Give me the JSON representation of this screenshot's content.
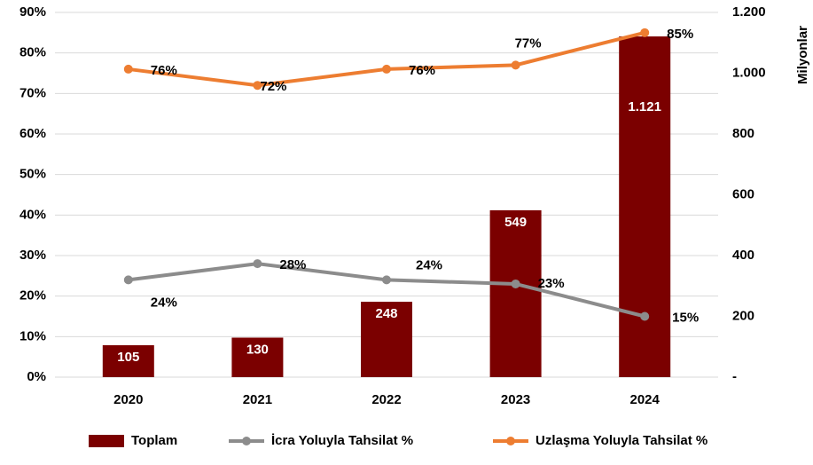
{
  "chart_data": {
    "type": "bar",
    "categories": [
      "2020",
      "2021",
      "2022",
      "2023",
      "2024"
    ],
    "series": [
      {
        "name": "Toplam",
        "type": "bar",
        "axis": "y2",
        "color": "#7b0000",
        "values": [
          105,
          130,
          248,
          549,
          1121
        ],
        "value_labels": [
          "105",
          "130",
          "248",
          "549",
          "1.121"
        ]
      },
      {
        "name": "İcra Yoluyla Tahsilat %",
        "type": "line",
        "color": "#8c8c8c",
        "values": [
          24,
          28,
          24,
          23,
          15
        ],
        "value_labels": [
          "24%",
          "28%",
          "24%",
          "23%",
          "15%"
        ]
      },
      {
        "name": "Uzlaşma Yoluyla Tahsilat %",
        "type": "line",
        "color": "#ed7d31",
        "values": [
          76,
          72,
          76,
          77,
          85
        ],
        "value_labels": [
          "76%",
          "72%",
          "76%",
          "77%",
          "85%"
        ]
      }
    ],
    "ylim": [
      0,
      90
    ],
    "yticks": [
      {
        "value": 0,
        "label": "0%"
      },
      {
        "value": 10,
        "label": "10%"
      },
      {
        "value": 20,
        "label": "20%"
      },
      {
        "value": 30,
        "label": "30%"
      },
      {
        "value": 40,
        "label": "40%"
      },
      {
        "value": 50,
        "label": "50%"
      },
      {
        "value": 60,
        "label": "60%"
      },
      {
        "value": 70,
        "label": "70%"
      },
      {
        "value": 80,
        "label": "80%"
      },
      {
        "value": 90,
        "label": "90%"
      }
    ],
    "y2lim": [
      0,
      1200
    ],
    "y2ticks": [
      {
        "value": 0,
        "label": "-"
      },
      200,
      400,
      600,
      800,
      {
        "value": 1000,
        "label": "1.000"
      },
      {
        "value": 1200,
        "label": "1.200"
      }
    ],
    "y2label": "Milyonlar",
    "grid": true,
    "legend": "bottom"
  }
}
